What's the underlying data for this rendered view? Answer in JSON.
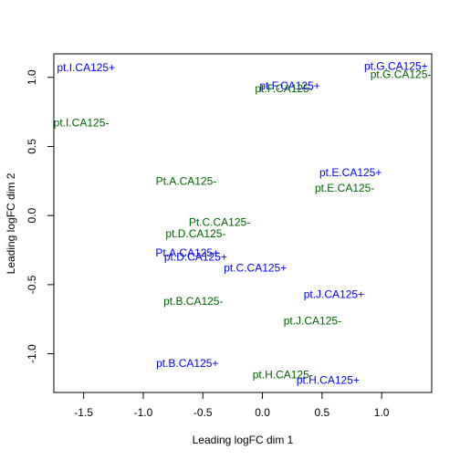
{
  "chart_data": {
    "type": "scatter",
    "xlabel": "Leading logFC dim 1",
    "ylabel": "Leading logFC dim 2",
    "xlim": [
      -1.75,
      1.42
    ],
    "ylim": [
      -1.28,
      1.17
    ],
    "x_ticks": [
      -1.5,
      -1.0,
      -0.5,
      0.0,
      0.5,
      1.0
    ],
    "y_ticks": [
      -1.0,
      -0.5,
      0.0,
      0.5,
      1.0
    ],
    "x_tick_labels": [
      "-1.5",
      "-1.0",
      "-0.5",
      "0.0",
      "0.5",
      "1.0"
    ],
    "y_tick_labels": [
      "-1.0",
      "-0.5",
      "0.0",
      "0.5",
      "1.0"
    ],
    "grid": false,
    "colors": {
      "CA125+": "#0000ff",
      "CA125-": "#006400"
    },
    "points": [
      {
        "label": "pt.I.CA125+",
        "group": "CA125+",
        "x": -1.48,
        "y": 1.07
      },
      {
        "label": "pt.I.CA125-",
        "group": "CA125-",
        "x": -1.52,
        "y": 0.67
      },
      {
        "label": "pt.F.CA125+",
        "group": "CA125+",
        "x": 0.23,
        "y": 0.94
      },
      {
        "label": "pt.F.CA125-",
        "group": "CA125-",
        "x": 0.18,
        "y": 0.92
      },
      {
        "label": "pt.G.CA125+",
        "group": "CA125+",
        "x": 1.12,
        "y": 1.08
      },
      {
        "label": "pt.G.CA125-",
        "group": "CA125-",
        "x": 1.16,
        "y": 1.02
      },
      {
        "label": "pt.E.CA125+",
        "group": "CA125+",
        "x": 0.74,
        "y": 0.31
      },
      {
        "label": "pt.E.CA125-",
        "group": "CA125-",
        "x": 0.69,
        "y": 0.2
      },
      {
        "label": "Pt.A.CA125-",
        "group": "CA125-",
        "x": -0.64,
        "y": 0.25
      },
      {
        "label": "Pt.C.CA125-",
        "group": "CA125-",
        "x": -0.36,
        "y": -0.05
      },
      {
        "label": "pt.D.CA125-",
        "group": "CA125-",
        "x": -0.56,
        "y": -0.13
      },
      {
        "label": "Pt.A.CA125+",
        "group": "CA125+",
        "x": -0.63,
        "y": -0.27
      },
      {
        "label": "pt.D.CA125+",
        "group": "CA125+",
        "x": -0.56,
        "y": -0.3
      },
      {
        "label": "pt.C.CA125+",
        "group": "CA125+",
        "x": -0.06,
        "y": -0.38
      },
      {
        "label": "pt.B.CA125-",
        "group": "CA125-",
        "x": -0.58,
        "y": -0.62
      },
      {
        "label": "pt.J.CA125+",
        "group": "CA125+",
        "x": 0.6,
        "y": -0.57
      },
      {
        "label": "pt.J.CA125-",
        "group": "CA125-",
        "x": 0.42,
        "y": -0.76
      },
      {
        "label": "pt.B.CA125+",
        "group": "CA125+",
        "x": -0.63,
        "y": -1.07
      },
      {
        "label": "pt.H.CA125-",
        "group": "CA125-",
        "x": 0.17,
        "y": -1.15
      },
      {
        "label": "pt.H.CA125+",
        "group": "CA125+",
        "x": 0.55,
        "y": -1.19
      }
    ]
  }
}
